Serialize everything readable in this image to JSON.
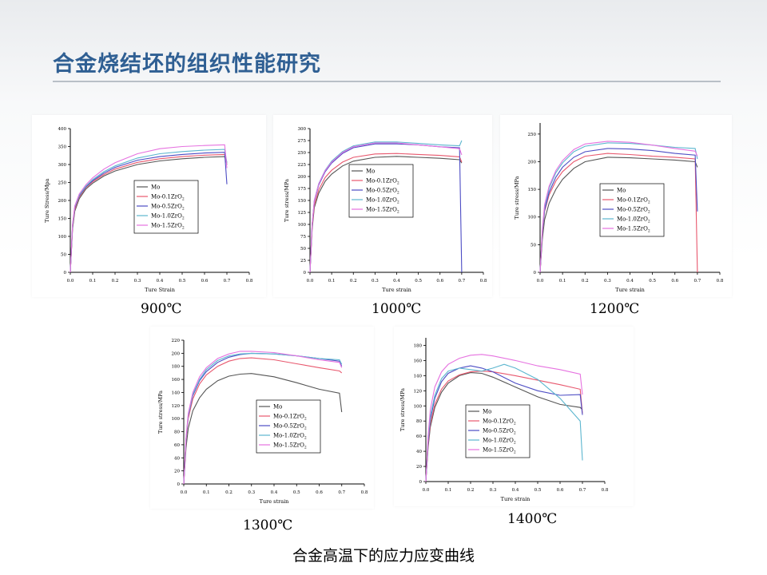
{
  "slide_title": "合金烧结坯的组织性能研究",
  "caption": "合金高温下的应力应变曲线",
  "colors": {
    "title": "#2f5f93",
    "series": [
      "#555555",
      "#e8586e",
      "#4c4cc4",
      "#5cb6cf",
      "#e672e0"
    ]
  },
  "chart_data": [
    {
      "type": "line",
      "temperature_label": "900℃",
      "xlabel": "Ture Strain",
      "ylabel": "Ture Stress/Mpa",
      "xlim": [
        0,
        0.8
      ],
      "ylim": [
        0,
        400
      ],
      "xticks": [
        "0.0",
        "0.1",
        "0.2",
        "0.3",
        "0.4",
        "0.5",
        "0.6",
        "0.7",
        "0.8"
      ],
      "yticks": [
        "0",
        "50",
        "100",
        "150",
        "200",
        "250",
        "300",
        "350",
        "400"
      ],
      "legend_position": "center",
      "series": [
        {
          "name": "Mo",
          "x": [
            0,
            0.01,
            0.02,
            0.04,
            0.07,
            0.1,
            0.15,
            0.2,
            0.3,
            0.4,
            0.5,
            0.6,
            0.69,
            0.7
          ],
          "y": [
            0,
            120,
            170,
            205,
            232,
            248,
            268,
            282,
            300,
            310,
            316,
            320,
            322,
            300
          ]
        },
        {
          "name": "Mo-0.1ZrO2",
          "x": [
            0,
            0.01,
            0.02,
            0.04,
            0.07,
            0.1,
            0.15,
            0.2,
            0.3,
            0.4,
            0.5,
            0.6,
            0.69,
            0.7
          ],
          "y": [
            0,
            125,
            175,
            210,
            236,
            252,
            272,
            287,
            306,
            316,
            322,
            326,
            328,
            305
          ]
        },
        {
          "name": "Mo-0.5ZrO2",
          "x": [
            0,
            0.01,
            0.02,
            0.04,
            0.07,
            0.1,
            0.15,
            0.2,
            0.3,
            0.4,
            0.5,
            0.6,
            0.69,
            0.7
          ],
          "y": [
            0,
            130,
            180,
            213,
            238,
            255,
            276,
            292,
            312,
            322,
            328,
            332,
            334,
            245
          ]
        },
        {
          "name": "Mo-1.0ZrO2",
          "x": [
            0,
            0.01,
            0.02,
            0.04,
            0.07,
            0.1,
            0.15,
            0.2,
            0.3,
            0.4,
            0.5,
            0.6,
            0.69,
            0.7
          ],
          "y": [
            0,
            130,
            182,
            215,
            240,
            258,
            280,
            296,
            318,
            330,
            336,
            340,
            342,
            305
          ]
        },
        {
          "name": "Mo-1.5ZrO2",
          "x": [
            0,
            0.01,
            0.02,
            0.04,
            0.07,
            0.1,
            0.15,
            0.2,
            0.3,
            0.4,
            0.5,
            0.6,
            0.69,
            0.7
          ],
          "y": [
            0,
            135,
            185,
            218,
            244,
            263,
            287,
            305,
            330,
            344,
            350,
            353,
            355,
            290
          ]
        }
      ]
    },
    {
      "type": "line",
      "temperature_label": "1000℃",
      "xlabel": "Ture strain",
      "ylabel": "Ture stress/MPa",
      "xlim": [
        0,
        0.8
      ],
      "ylim": [
        0,
        300
      ],
      "xticks": [
        "0.0",
        "0.1",
        "0.2",
        "0.3",
        "0.4",
        "0.5",
        "0.6",
        "0.7",
        "0.8"
      ],
      "yticks": [
        "0",
        "25",
        "50",
        "75",
        "100",
        "125",
        "150",
        "175",
        "200",
        "225",
        "250",
        "275",
        "300"
      ],
      "legend_position": "center-right",
      "series": [
        {
          "name": "Mo",
          "x": [
            0,
            0.01,
            0.02,
            0.04,
            0.07,
            0.1,
            0.15,
            0.2,
            0.3,
            0.4,
            0.5,
            0.6,
            0.69,
            0.7
          ],
          "y": [
            0,
            90,
            135,
            165,
            190,
            205,
            222,
            232,
            240,
            242,
            240,
            238,
            235,
            228
          ]
        },
        {
          "name": "Mo-0.1ZrO2",
          "x": [
            0,
            0.01,
            0.02,
            0.04,
            0.07,
            0.1,
            0.15,
            0.2,
            0.3,
            0.4,
            0.5,
            0.6,
            0.69,
            0.7
          ],
          "y": [
            0,
            95,
            140,
            172,
            198,
            213,
            230,
            240,
            247,
            248,
            246,
            244,
            241,
            230
          ]
        },
        {
          "name": "Mo-0.5ZrO2",
          "x": [
            0,
            0.01,
            0.02,
            0.04,
            0.07,
            0.1,
            0.15,
            0.2,
            0.3,
            0.4,
            0.5,
            0.6,
            0.69,
            0.7
          ],
          "y": [
            0,
            100,
            148,
            182,
            210,
            228,
            248,
            260,
            268,
            268,
            266,
            262,
            260,
            0
          ]
        },
        {
          "name": "Mo-1.0ZrO2",
          "x": [
            0,
            0.01,
            0.02,
            0.04,
            0.07,
            0.1,
            0.15,
            0.2,
            0.3,
            0.4,
            0.5,
            0.6,
            0.69,
            0.7
          ],
          "y": [
            0,
            100,
            150,
            185,
            213,
            232,
            252,
            264,
            272,
            272,
            269,
            266,
            264,
            275
          ]
        },
        {
          "name": "Mo-1.5ZrO2",
          "x": [
            0,
            0.01,
            0.02,
            0.04,
            0.07,
            0.1,
            0.15,
            0.2,
            0.3,
            0.4,
            0.5,
            0.6,
            0.69,
            0.7
          ],
          "y": [
            0,
            100,
            150,
            184,
            212,
            230,
            250,
            262,
            270,
            270,
            266,
            262,
            258,
            245
          ]
        }
      ]
    },
    {
      "type": "line",
      "temperature_label": "1200℃",
      "xlabel": "Ture strain",
      "ylabel": "Ture stress/MPa",
      "xlim": [
        0,
        0.8
      ],
      "ylim": [
        0,
        270
      ],
      "xticks": [
        "0.0",
        "0.1",
        "0.2",
        "0.3",
        "0.4",
        "0.5",
        "0.6",
        "0.7",
        "0.8"
      ],
      "yticks": [
        "0",
        "50",
        "100",
        "150",
        "200",
        "250"
      ],
      "legend_position": "center-right",
      "series": [
        {
          "name": "Mo",
          "x": [
            0,
            0.01,
            0.02,
            0.04,
            0.07,
            0.1,
            0.15,
            0.2,
            0.3,
            0.4,
            0.5,
            0.6,
            0.69,
            0.7
          ],
          "y": [
            0,
            60,
            95,
            125,
            150,
            168,
            188,
            200,
            208,
            207,
            205,
            203,
            200,
            190
          ]
        },
        {
          "name": "Mo-0.1ZrO2",
          "x": [
            0,
            0.01,
            0.02,
            0.04,
            0.07,
            0.1,
            0.15,
            0.2,
            0.3,
            0.4,
            0.5,
            0.6,
            0.69,
            0.7
          ],
          "y": [
            0,
            70,
            110,
            140,
            165,
            182,
            200,
            210,
            215,
            213,
            210,
            208,
            205,
            0
          ]
        },
        {
          "name": "Mo-0.5ZrO2",
          "x": [
            0,
            0.01,
            0.02,
            0.04,
            0.07,
            0.1,
            0.15,
            0.2,
            0.3,
            0.4,
            0.5,
            0.6,
            0.69,
            0.7
          ],
          "y": [
            0,
            72,
            112,
            145,
            172,
            190,
            208,
            218,
            224,
            223,
            220,
            215,
            212,
            110
          ]
        },
        {
          "name": "Mo-1.0ZrO2",
          "x": [
            0,
            0.01,
            0.02,
            0.04,
            0.07,
            0.1,
            0.15,
            0.2,
            0.3,
            0.4,
            0.5,
            0.6,
            0.69,
            0.7
          ],
          "y": [
            0,
            75,
            118,
            152,
            180,
            198,
            218,
            228,
            234,
            233,
            230,
            226,
            224,
            205
          ]
        },
        {
          "name": "Mo-1.5ZrO2",
          "x": [
            0,
            0.01,
            0.02,
            0.04,
            0.07,
            0.1,
            0.15,
            0.2,
            0.3,
            0.4,
            0.5,
            0.6,
            0.69,
            0.7
          ],
          "y": [
            0,
            78,
            122,
            156,
            184,
            202,
            222,
            232,
            237,
            235,
            230,
            224,
            219,
            210
          ]
        }
      ]
    },
    {
      "type": "line",
      "temperature_label": "1300℃",
      "xlabel": "Ture strain",
      "ylabel": "Ture stress/MPa",
      "xlim": [
        0,
        0.8
      ],
      "ylim": [
        0,
        220
      ],
      "xticks": [
        "0.0",
        "0.1",
        "0.2",
        "0.3",
        "0.4",
        "0.5",
        "0.6",
        "0.7",
        "0.8"
      ],
      "yticks": [
        "0",
        "20",
        "40",
        "60",
        "80",
        "100",
        "120",
        "140",
        "160",
        "180",
        "200",
        "220"
      ],
      "legend_position": "center-right",
      "series": [
        {
          "name": "Mo",
          "x": [
            0,
            0.01,
            0.02,
            0.04,
            0.07,
            0.1,
            0.15,
            0.2,
            0.25,
            0.3,
            0.4,
            0.5,
            0.6,
            0.69,
            0.7
          ],
          "y": [
            0,
            55,
            85,
            112,
            132,
            145,
            158,
            165,
            168,
            169,
            164,
            155,
            145,
            139,
            110
          ]
        },
        {
          "name": "Mo-0.1ZrO2",
          "x": [
            0,
            0.01,
            0.02,
            0.04,
            0.07,
            0.1,
            0.15,
            0.2,
            0.25,
            0.3,
            0.4,
            0.5,
            0.6,
            0.69,
            0.7
          ],
          "y": [
            0,
            65,
            100,
            130,
            153,
            167,
            180,
            188,
            192,
            193,
            190,
            184,
            178,
            173,
            170
          ]
        },
        {
          "name": "Mo-0.5ZrO2",
          "x": [
            0,
            0.01,
            0.02,
            0.04,
            0.07,
            0.1,
            0.15,
            0.2,
            0.25,
            0.3,
            0.4,
            0.5,
            0.6,
            0.69,
            0.7
          ],
          "y": [
            0,
            68,
            104,
            135,
            158,
            172,
            186,
            194,
            198,
            200,
            199,
            196,
            192,
            188,
            180
          ]
        },
        {
          "name": "Mo-1.0ZrO2",
          "x": [
            0,
            0.01,
            0.02,
            0.04,
            0.07,
            0.1,
            0.15,
            0.2,
            0.25,
            0.3,
            0.4,
            0.5,
            0.6,
            0.69,
            0.7
          ],
          "y": [
            0,
            68,
            105,
            137,
            160,
            175,
            189,
            196,
            199,
            200,
            199,
            196,
            192,
            190,
            183
          ]
        },
        {
          "name": "Mo-1.5ZrO2",
          "x": [
            0,
            0.01,
            0.02,
            0.04,
            0.07,
            0.1,
            0.15,
            0.2,
            0.25,
            0.3,
            0.4,
            0.5,
            0.6,
            0.69,
            0.7
          ],
          "y": [
            0,
            70,
            108,
            140,
            164,
            178,
            192,
            199,
            203,
            203,
            201,
            196,
            190,
            186,
            178
          ]
        }
      ]
    },
    {
      "type": "line",
      "temperature_label": "1400℃",
      "xlabel": "Ture strain",
      "ylabel": "Ture stress/MPa",
      "xlim": [
        0,
        0.8
      ],
      "ylim": [
        0,
        190
      ],
      "xticks": [
        "0.0",
        "0.1",
        "0.2",
        "0.3",
        "0.4",
        "0.5",
        "0.6",
        "0.7",
        "0.8"
      ],
      "yticks": [
        "0",
        "20",
        "40",
        "60",
        "80",
        "100",
        "120",
        "140",
        "160",
        "180"
      ],
      "legend_position": "center",
      "series": [
        {
          "name": "Mo",
          "x": [
            0,
            0.01,
            0.02,
            0.04,
            0.07,
            0.1,
            0.15,
            0.2,
            0.25,
            0.3,
            0.4,
            0.5,
            0.6,
            0.69,
            0.7
          ],
          "y": [
            0,
            45,
            72,
            98,
            118,
            130,
            140,
            144,
            143,
            138,
            125,
            112,
            102,
            98,
            95
          ]
        },
        {
          "name": "Mo-0.1ZrO2",
          "x": [
            0,
            0.01,
            0.02,
            0.04,
            0.07,
            0.1,
            0.15,
            0.2,
            0.25,
            0.3,
            0.4,
            0.5,
            0.6,
            0.69,
            0.7
          ],
          "y": [
            0,
            48,
            76,
            102,
            122,
            133,
            141,
            145,
            146,
            145,
            140,
            134,
            128,
            122,
            90
          ]
        },
        {
          "name": "Mo-0.5ZrO2",
          "x": [
            0,
            0.01,
            0.02,
            0.04,
            0.07,
            0.1,
            0.15,
            0.2,
            0.25,
            0.3,
            0.4,
            0.5,
            0.6,
            0.69,
            0.7
          ],
          "y": [
            0,
            52,
            82,
            110,
            132,
            143,
            150,
            153,
            150,
            145,
            130,
            120,
            114,
            115,
            88
          ]
        },
        {
          "name": "Mo-1.0ZrO2",
          "x": [
            0,
            0.01,
            0.02,
            0.04,
            0.07,
            0.1,
            0.15,
            0.2,
            0.25,
            0.3,
            0.35,
            0.4,
            0.5,
            0.6,
            0.69,
            0.7
          ],
          "y": [
            0,
            55,
            86,
            114,
            136,
            146,
            150,
            148,
            146,
            150,
            155,
            150,
            135,
            110,
            80,
            28
          ]
        },
        {
          "name": "Mo-1.5ZrO2",
          "x": [
            0,
            0.01,
            0.02,
            0.04,
            0.07,
            0.1,
            0.15,
            0.2,
            0.25,
            0.3,
            0.4,
            0.5,
            0.6,
            0.69,
            0.7
          ],
          "y": [
            0,
            60,
            95,
            125,
            145,
            155,
            163,
            167,
            168,
            166,
            160,
            153,
            148,
            142,
            115
          ]
        }
      ]
    }
  ]
}
